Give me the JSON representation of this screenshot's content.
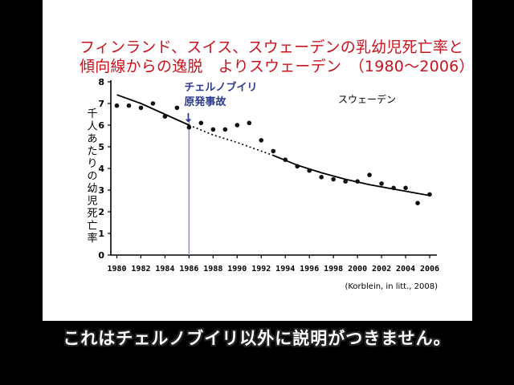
{
  "title_line1": "フィンランド、スイス、スウェーデンの乳幼児死亡率と",
  "title_line2": "傾向線からの逸脱　よりスウェーデン　（1980～2006）",
  "subtitle": "これはチェルノブイリ以外に説明がつきません。",
  "colors": {
    "title": "#c8141e",
    "annotation": "#2b3a8c",
    "marker_line": "#8a9ac8",
    "points": "#111111"
  },
  "chart_data": {
    "type": "scatter",
    "title": "",
    "series_label": "スウェーデン",
    "ylabel": "千人あたりの幼児死亡率",
    "xlabel": "",
    "xlim": [
      1979.5,
      2006.6
    ],
    "ylim": [
      0,
      8
    ],
    "x_ticks": [
      1980,
      1982,
      1984,
      1986,
      1988,
      1990,
      1992,
      1994,
      1996,
      1998,
      2000,
      2002,
      2004,
      2006
    ],
    "y_ticks": [
      0,
      1,
      2,
      3,
      4,
      5,
      6,
      7,
      8
    ],
    "points": [
      {
        "x": 1980,
        "y": 6.9
      },
      {
        "x": 1981,
        "y": 6.9
      },
      {
        "x": 1982,
        "y": 6.8
      },
      {
        "x": 1983,
        "y": 7.0
      },
      {
        "x": 1984,
        "y": 6.4
      },
      {
        "x": 1985,
        "y": 6.8
      },
      {
        "x": 1986,
        "y": 5.9
      },
      {
        "x": 1987,
        "y": 6.1
      },
      {
        "x": 1988,
        "y": 5.8
      },
      {
        "x": 1989,
        "y": 5.8
      },
      {
        "x": 1990,
        "y": 6.0
      },
      {
        "x": 1991,
        "y": 6.1
      },
      {
        "x": 1992,
        "y": 5.3
      },
      {
        "x": 1993,
        "y": 4.8
      },
      {
        "x": 1994,
        "y": 4.4
      },
      {
        "x": 1995,
        "y": 4.1
      },
      {
        "x": 1996,
        "y": 3.9
      },
      {
        "x": 1997,
        "y": 3.6
      },
      {
        "x": 1998,
        "y": 3.5
      },
      {
        "x": 1999,
        "y": 3.4
      },
      {
        "x": 2000,
        "y": 3.4
      },
      {
        "x": 2001,
        "y": 3.7
      },
      {
        "x": 2002,
        "y": 3.3
      },
      {
        "x": 2003,
        "y": 3.1
      },
      {
        "x": 2004,
        "y": 3.1
      },
      {
        "x": 2005,
        "y": 2.4
      },
      {
        "x": 2006,
        "y": 2.8
      }
    ],
    "trend_solid_1": [
      [
        1980,
        7.4
      ],
      [
        1982,
        7.0
      ],
      [
        1984,
        6.5
      ],
      [
        1986,
        6.0
      ]
    ],
    "trend_dotted": [
      [
        1986,
        6.0
      ],
      [
        1988,
        5.55
      ],
      [
        1990,
        5.2
      ],
      [
        1992,
        4.8
      ],
      [
        1993,
        4.6
      ]
    ],
    "trend_solid_2": [
      [
        1993,
        4.6
      ],
      [
        1995,
        4.15
      ],
      [
        1997,
        3.8
      ],
      [
        1999,
        3.5
      ],
      [
        2001,
        3.25
      ],
      [
        2003,
        3.05
      ],
      [
        2005,
        2.85
      ],
      [
        2006,
        2.75
      ]
    ],
    "event_line_x": 1986,
    "event_label": [
      "チェルノブイリ",
      "原発事故"
    ],
    "event_arrow": "↓",
    "source": "(Korblein, in litt., 2008)"
  }
}
